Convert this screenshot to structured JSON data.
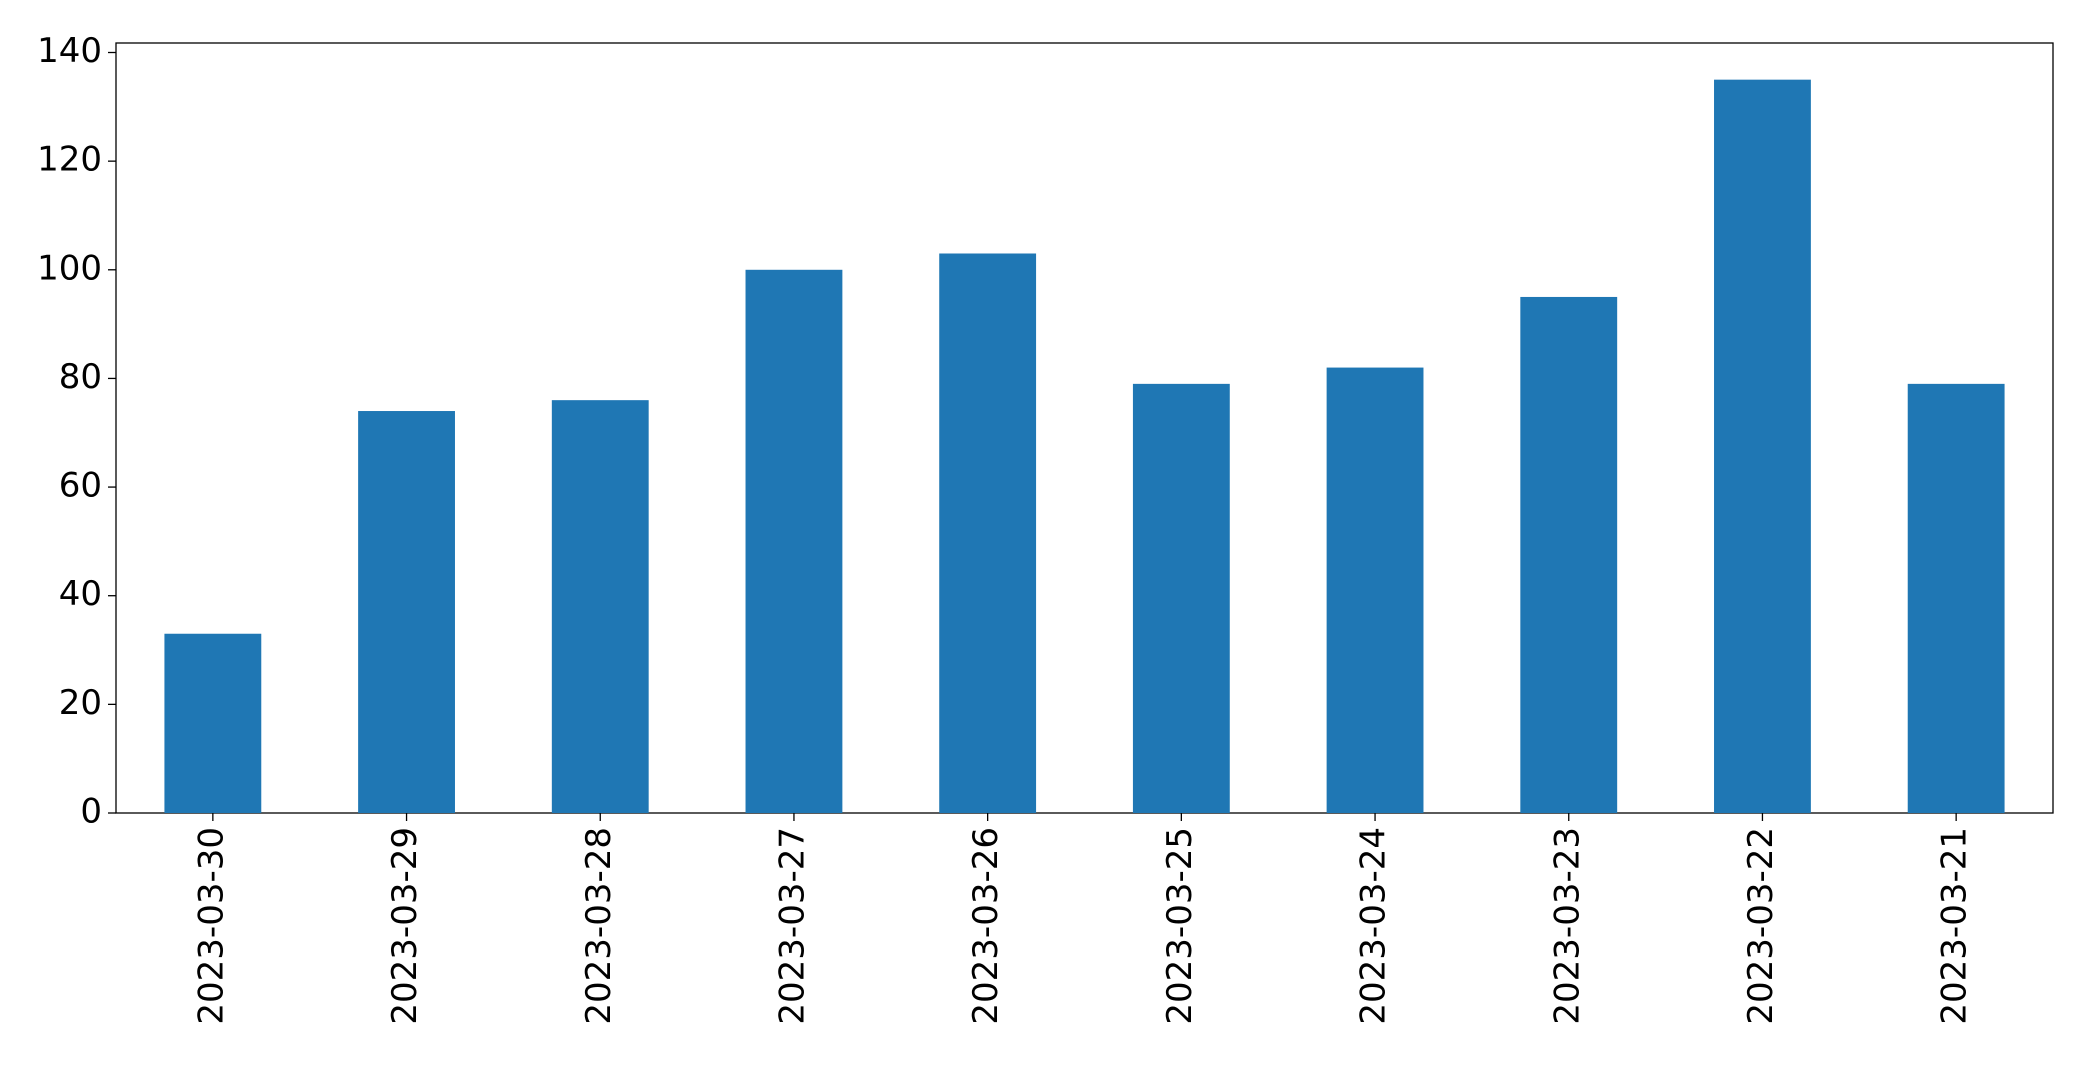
{
  "chart_data": {
    "type": "bar",
    "categories": [
      "2023-03-30",
      "2023-03-29",
      "2023-03-28",
      "2023-03-27",
      "2023-03-26",
      "2023-03-25",
      "2023-03-24",
      "2023-03-23",
      "2023-03-22",
      "2023-03-21"
    ],
    "values": [
      33,
      74,
      76,
      100,
      103,
      79,
      82,
      95,
      135,
      79
    ],
    "color": "#1f77b4",
    "ylim": [
      0,
      141.75
    ],
    "yticks": [
      0,
      20,
      40,
      60,
      80,
      100,
      120,
      140
    ],
    "grid": false
  }
}
